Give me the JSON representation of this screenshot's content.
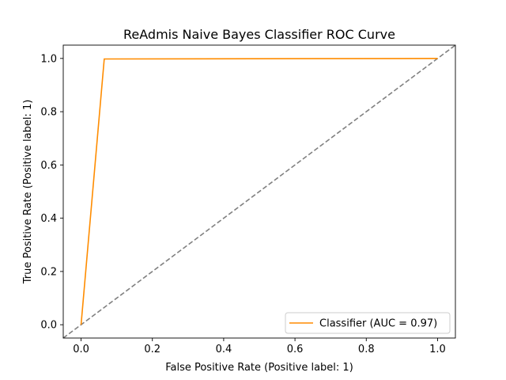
{
  "chart_data": {
    "type": "line",
    "title": "ReAdmis Naive Bayes Classifier ROC Curve",
    "xlabel": "False Positive Rate (Positive label: 1)",
    "ylabel": "True Positive Rate (Positive label: 1)",
    "xlim": [
      -0.05,
      1.05
    ],
    "ylim": [
      -0.05,
      1.05
    ],
    "xticks": [
      0.0,
      0.2,
      0.4,
      0.6,
      0.8,
      1.0
    ],
    "yticks": [
      0.0,
      0.2,
      0.4,
      0.6,
      0.8,
      1.0
    ],
    "xtick_labels": [
      "0.0",
      "0.2",
      "0.4",
      "0.6",
      "0.8",
      "1.0"
    ],
    "ytick_labels": [
      "0.0",
      "0.2",
      "0.4",
      "0.6",
      "0.8",
      "1.0"
    ],
    "grid": false,
    "legend_position": "lower-right",
    "series": [
      {
        "name": "Classifier (AUC = 0.97)",
        "color": "#ff8c00",
        "style": "solid",
        "x": [
          0.0,
          0.065,
          1.0
        ],
        "y": [
          0.0,
          0.998,
          1.0
        ]
      }
    ],
    "reference_line": {
      "color": "#808080",
      "style": "dashed",
      "x": [
        -0.05,
        1.05
      ],
      "y": [
        -0.05,
        1.05
      ]
    }
  }
}
